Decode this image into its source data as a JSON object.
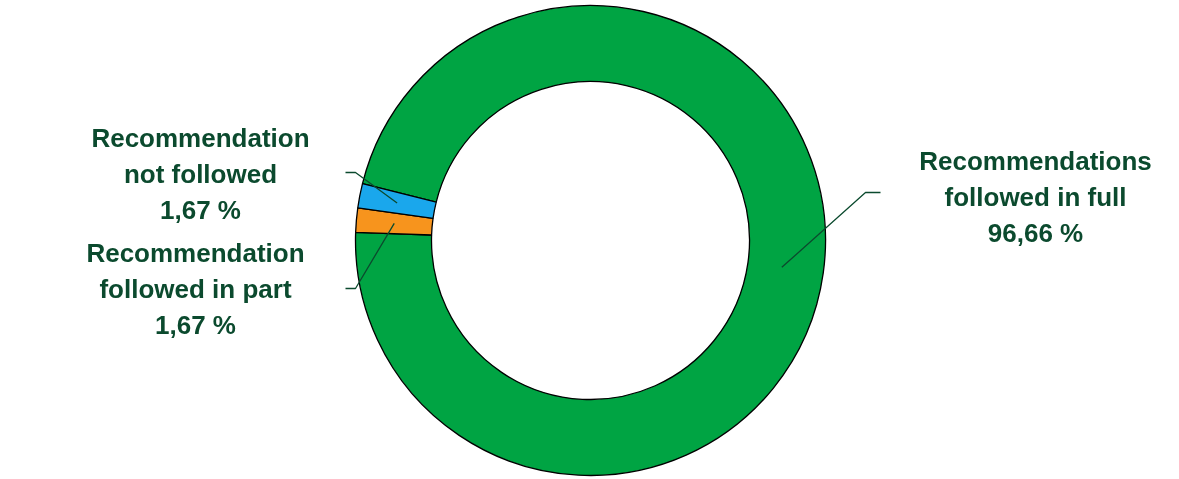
{
  "chart_data": {
    "type": "donut",
    "categories": [
      "Recommendations followed in full",
      "Recommendation followed in part",
      "Recommendation not followed"
    ],
    "values": [
      96.66,
      1.67,
      1.67
    ],
    "colors": [
      "#00a443",
      "#f7941d",
      "#1aa7ec"
    ],
    "value_labels": [
      "96,66 %",
      "1,67 %",
      "1,67 %"
    ]
  }
}
